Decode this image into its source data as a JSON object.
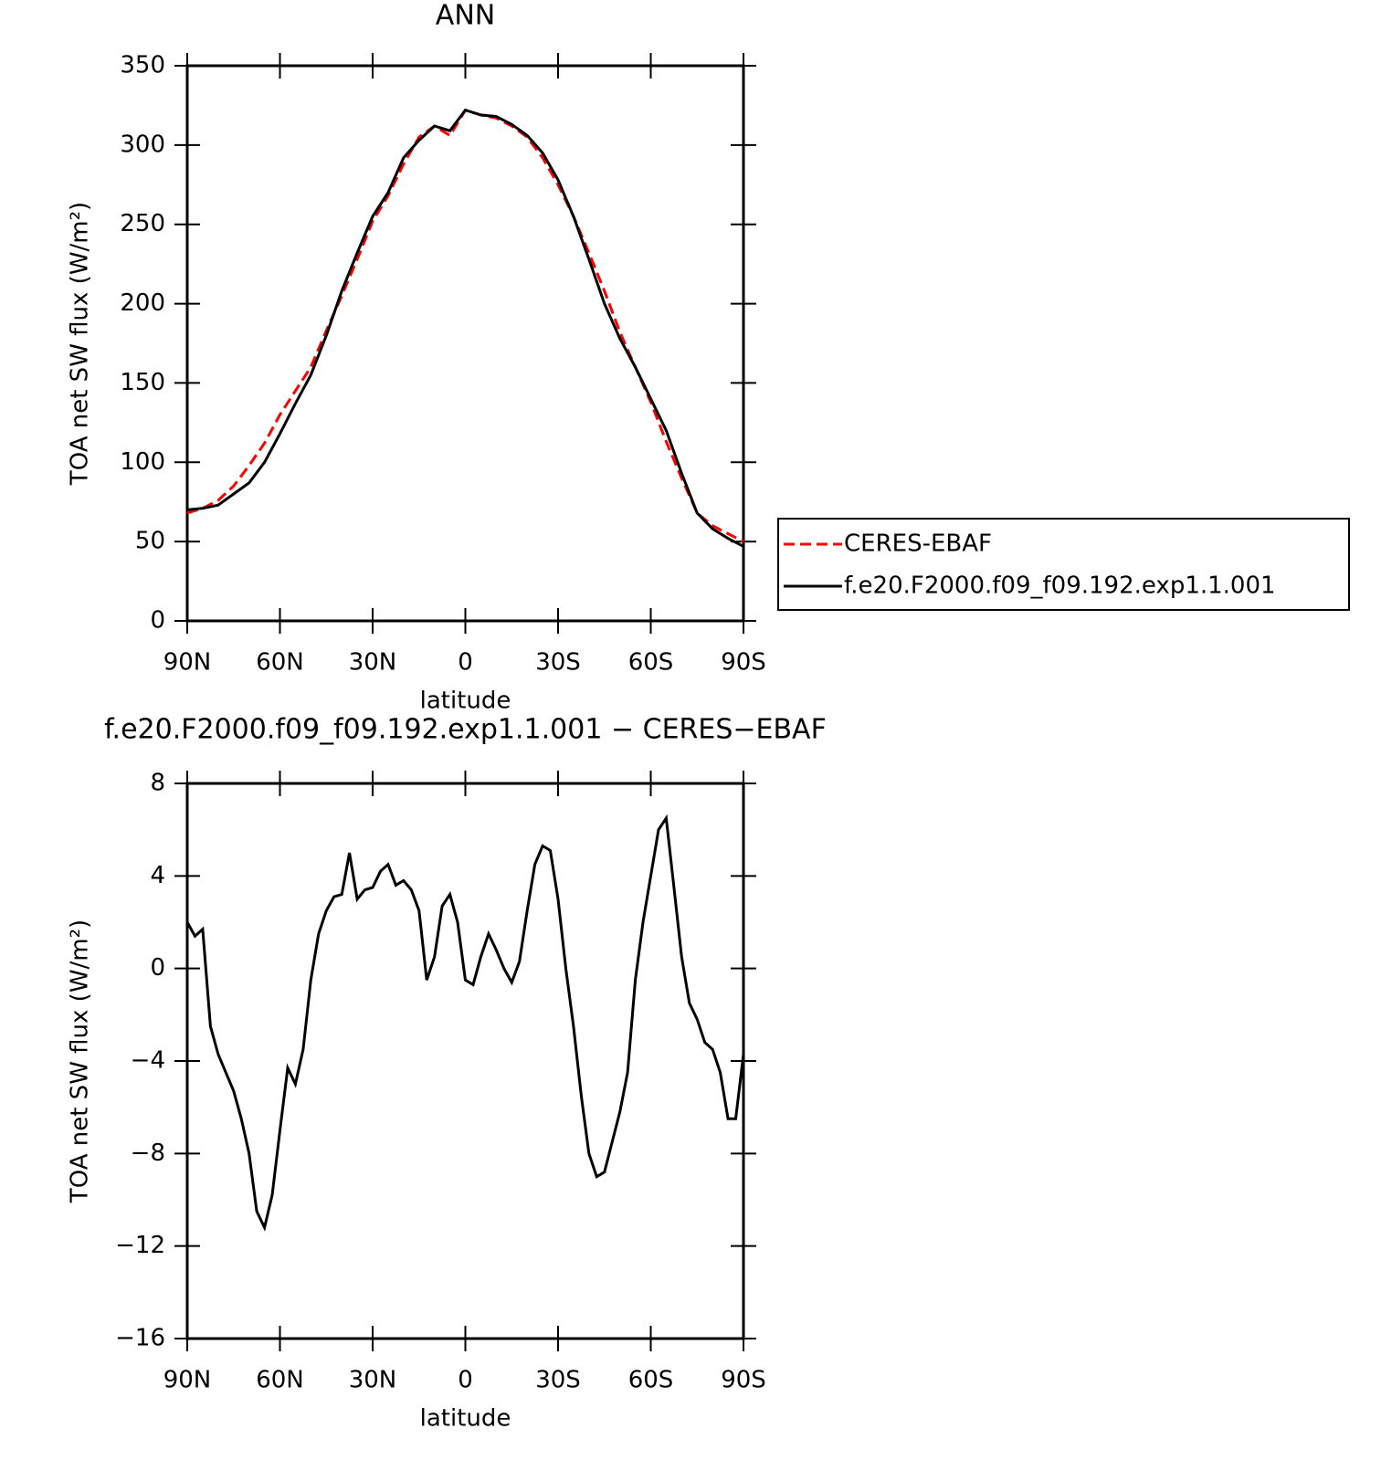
{
  "chart_data": [
    {
      "type": "line",
      "title": "ANN",
      "xlabel": "latitude",
      "ylabel": "TOA net SW flux (W/m²)",
      "x": [
        90,
        85,
        80,
        75,
        70,
        65,
        60,
        55,
        50,
        45,
        40,
        35,
        30,
        25,
        20,
        15,
        10,
        5,
        0,
        -5,
        -10,
        -15,
        -20,
        -25,
        -30,
        -35,
        -40,
        -45,
        -50,
        -55,
        -60,
        -65,
        -70,
        -75,
        -80,
        -85,
        -90
      ],
      "series": [
        {
          "name": "CERES-EBAF",
          "color": "#ff0000",
          "line_style": "dashed",
          "values": [
            68,
            71,
            76,
            85,
            98,
            112,
            130,
            145,
            160,
            183,
            205,
            228,
            252,
            268,
            288,
            305,
            312,
            306,
            322,
            319,
            317,
            312,
            305,
            292,
            275,
            255,
            232,
            208,
            182,
            160,
            138,
            113,
            90,
            68,
            60,
            55,
            50
          ]
        },
        {
          "name": "f.e20.F2000.f09_f09.192.exp1.1.001",
          "color": "#000000",
          "line_style": "solid",
          "values": [
            70,
            71,
            73,
            80,
            87,
            100,
            118,
            137,
            155,
            180,
            208,
            232,
            255,
            270,
            292,
            303,
            312,
            309,
            322,
            319,
            318,
            313,
            306,
            295,
            278,
            255,
            228,
            200,
            178,
            160,
            140,
            120,
            93,
            68,
            58,
            52,
            47
          ]
        }
      ],
      "xlim": [
        90,
        -90
      ],
      "xticks": [
        {
          "value": 90,
          "label": "90N"
        },
        {
          "value": 60,
          "label": "60N"
        },
        {
          "value": 30,
          "label": "30N"
        },
        0,
        {
          "value": -30,
          "label": "30S"
        },
        {
          "value": -60,
          "label": "60S"
        },
        {
          "value": -90,
          "label": "90S"
        }
      ],
      "ylim": [
        0,
        350
      ],
      "yticks": [
        0,
        50,
        100,
        150,
        200,
        250,
        300,
        350
      ],
      "grid": false,
      "legend": "right"
    },
    {
      "type": "line",
      "title": "f.e20.F2000.f09_f09.192.exp1.1.001 − CERES−EBAF",
      "xlabel": "latitude",
      "ylabel": "TOA net SW flux (W/m²)",
      "x": [
        90,
        87.5,
        85,
        82.5,
        80,
        77.5,
        75,
        72.5,
        70,
        67.5,
        65,
        62.5,
        60,
        57.5,
        55,
        52.5,
        50,
        47.5,
        45,
        42.5,
        40,
        37.5,
        35,
        32.5,
        30,
        27.5,
        25,
        22.5,
        20,
        17.5,
        15,
        12.5,
        10,
        7.5,
        5,
        2.5,
        0,
        -2.5,
        -5,
        -7.5,
        -10,
        -12.5,
        -15,
        -17.5,
        -20,
        -22.5,
        -25,
        -27.5,
        -30,
        -32.5,
        -35,
        -37.5,
        -40,
        -42.5,
        -45,
        -47.5,
        -50,
        -52.5,
        -55,
        -57.5,
        -60,
        -62.5,
        -65,
        -67.5,
        -70,
        -72.5,
        -75,
        -77.5,
        -80,
        -82.5,
        -85,
        -87.5,
        -90
      ],
      "values": [
        2.0,
        1.4,
        1.7,
        -2.5,
        -3.7,
        -4.5,
        -5.3,
        -6.5,
        -8.0,
        -10.5,
        -11.2,
        -9.8,
        -7.0,
        -4.3,
        -5.0,
        -3.5,
        -0.5,
        1.5,
        2.5,
        3.1,
        3.2,
        5.0,
        3.0,
        3.4,
        3.5,
        4.2,
        4.5,
        3.6,
        3.8,
        3.4,
        2.5,
        -0.5,
        0.5,
        2.7,
        3.2,
        2.0,
        -0.5,
        -0.7,
        0.5,
        1.5,
        0.8,
        0.0,
        -0.6,
        0.3,
        2.5,
        4.5,
        5.3,
        5.1,
        3.0,
        0.0,
        -2.5,
        -5.5,
        -8.0,
        -9.0,
        -8.8,
        -7.5,
        -6.2,
        -4.5,
        -0.5,
        2.0,
        4.0,
        6.0,
        6.5,
        3.5,
        0.5,
        -1.5,
        -2.2,
        -3.2,
        -3.5,
        -4.5,
        -6.5,
        -6.5,
        -3.7
      ],
      "color": "#000000",
      "line_style": "solid",
      "xlim": [
        90,
        -90
      ],
      "xticks": [
        {
          "value": 90,
          "label": "90N"
        },
        {
          "value": 60,
          "label": "60N"
        },
        {
          "value": 30,
          "label": "30N"
        },
        0,
        {
          "value": -30,
          "label": "30S"
        },
        {
          "value": -60,
          "label": "60S"
        },
        {
          "value": -90,
          "label": "90S"
        }
      ],
      "ylim": [
        -16,
        8
      ],
      "yticks": [
        {
          "value": -16,
          "label": "−16"
        },
        {
          "value": -12,
          "label": "−12"
        },
        {
          "value": -8,
          "label": "−8"
        },
        {
          "value": -4,
          "label": "−4"
        },
        0,
        4,
        8
      ],
      "grid": false
    }
  ]
}
